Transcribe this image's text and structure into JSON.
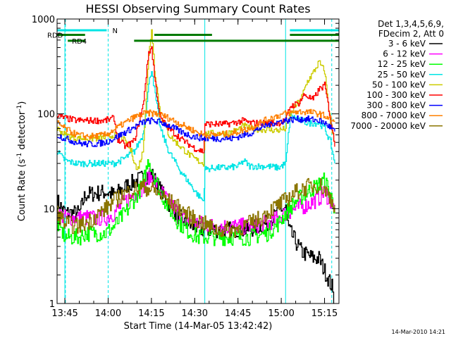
{
  "chart_data": {
    "type": "line",
    "title": "HESSI Observing Summary Count Rates",
    "xlabel": "Start Time (14-Mar-05 13:42:42)",
    "ylabel": "Count Rate (s",
    "ylabel_sup1": "-1",
    "ylabel_mid": " detector",
    "ylabel_sup2": "-1",
    "ylabel_end": ")",
    "y_scale": "log",
    "ylim": [
      1,
      1000
    ],
    "xlim_minutes": [
      -2.7,
      95
    ],
    "x_ticks": [
      {
        "label": "13:45",
        "minutes": 0
      },
      {
        "label": "14:00",
        "minutes": 15
      },
      {
        "label": "14:15",
        "minutes": 30
      },
      {
        "label": "14:30",
        "minutes": 45
      },
      {
        "label": "14:45",
        "minutes": 60
      },
      {
        "label": "15:00",
        "minutes": 75
      },
      {
        "label": "15:15",
        "minutes": 90
      }
    ],
    "y_ticks": [
      {
        "label": "1",
        "value": 1
      },
      {
        "label": "10",
        "value": 10
      },
      {
        "label": "100",
        "value": 100
      },
      {
        "label": "1000",
        "value": 1000
      }
    ],
    "legend_header": [
      "Det 1,3,4,5,6,9,",
      "FDecim 2, Att 0"
    ],
    "legend_placement": "right",
    "flags": [
      {
        "label": "N",
        "color": "#00e5e5",
        "y": 760,
        "segments": [
          [
            -2.7,
            14.5
          ],
          [
            78,
            95
          ]
        ]
      },
      {
        "label": "RDD",
        "color": "#007a00",
        "y": 680,
        "segments": [
          [
            -2.7,
            7
          ],
          [
            31,
            51
          ],
          [
            78,
            95
          ]
        ]
      },
      {
        "label": "RD4",
        "color": "#007a00",
        "y": 590,
        "segments": [
          [
            1,
            7
          ],
          [
            24,
            95
          ]
        ]
      }
    ],
    "vertical_markers": [
      {
        "minutes": 0,
        "color": "#00e5e5",
        "style": "solid"
      },
      {
        "minutes": 0.2,
        "color": "#00e5e5",
        "style": "dashed"
      },
      {
        "minutes": 15,
        "color": "#00e5e5",
        "style": "dashed"
      },
      {
        "minutes": 48.5,
        "color": "#00e5e5",
        "style": "solid"
      },
      {
        "minutes": 76.5,
        "color": "#00e5e5",
        "style": "solid"
      },
      {
        "minutes": 92.5,
        "color": "#00e5e5",
        "style": "dashed"
      }
    ],
    "series": [
      {
        "name": "3 - 6 keV",
        "color": "#000000",
        "points": [
          [
            -2.7,
            12
          ],
          [
            0,
            9
          ],
          [
            5,
            9
          ],
          [
            7,
            14
          ],
          [
            14,
            15
          ],
          [
            17,
            14
          ],
          [
            22,
            18
          ],
          [
            28,
            22
          ],
          [
            30,
            23
          ],
          [
            34,
            14
          ],
          [
            38,
            9
          ],
          [
            42,
            7
          ],
          [
            46,
            6
          ],
          [
            52,
            6
          ],
          [
            58,
            6
          ],
          [
            64,
            6
          ],
          [
            70,
            7
          ],
          [
            72,
            8
          ],
          [
            75,
            10
          ],
          [
            76.5,
            10
          ],
          [
            77.5,
            6
          ],
          [
            82,
            3.5
          ],
          [
            86,
            3
          ],
          [
            88,
            3
          ],
          [
            90,
            2.2
          ],
          [
            92.5,
            1.5
          ],
          [
            93.5,
            0.8
          ]
        ]
      },
      {
        "name": "6 - 12 keV",
        "color": "#ff00ff",
        "points": [
          [
            -2.7,
            9
          ],
          [
            0,
            8
          ],
          [
            7,
            8
          ],
          [
            14,
            8
          ],
          [
            17,
            9
          ],
          [
            22,
            13
          ],
          [
            27,
            17
          ],
          [
            29,
            22
          ],
          [
            31,
            20
          ],
          [
            34,
            14
          ],
          [
            38,
            10
          ],
          [
            42,
            8
          ],
          [
            46,
            7
          ],
          [
            52,
            6.5
          ],
          [
            58,
            6.5
          ],
          [
            64,
            6.5
          ],
          [
            70,
            7
          ],
          [
            74,
            8
          ],
          [
            76.5,
            9
          ],
          [
            80,
            10
          ],
          [
            84,
            11
          ],
          [
            88,
            13
          ],
          [
            90,
            15
          ],
          [
            92,
            12
          ],
          [
            93.5,
            9
          ]
        ]
      },
      {
        "name": "12 - 25 keV",
        "color": "#00ff00",
        "points": [
          [
            -2.7,
            7
          ],
          [
            0,
            5
          ],
          [
            5,
            5
          ],
          [
            7,
            5.5
          ],
          [
            14,
            5.5
          ],
          [
            17,
            6.5
          ],
          [
            22,
            10
          ],
          [
            27,
            18
          ],
          [
            29,
            33
          ],
          [
            31,
            22
          ],
          [
            34,
            13
          ],
          [
            38,
            8
          ],
          [
            42,
            6
          ],
          [
            46,
            5
          ],
          [
            52,
            5
          ],
          [
            58,
            5
          ],
          [
            64,
            5
          ],
          [
            70,
            5.5
          ],
          [
            74,
            7
          ],
          [
            76.5,
            9
          ],
          [
            80,
            12
          ],
          [
            84,
            15
          ],
          [
            88,
            18
          ],
          [
            90,
            20
          ],
          [
            92,
            14
          ],
          [
            93.5,
            10
          ]
        ]
      },
      {
        "name": "25 - 50 keV",
        "color": "#00e5e5",
        "points": [
          [
            -2.7,
            40
          ],
          [
            0,
            32
          ],
          [
            4,
            30
          ],
          [
            7,
            30
          ],
          [
            14,
            30
          ],
          [
            17,
            30
          ],
          [
            20,
            33
          ],
          [
            24,
            40
          ],
          [
            27,
            60
          ],
          [
            29,
            200
          ],
          [
            30,
            300
          ],
          [
            31,
            180
          ],
          [
            33,
            70
          ],
          [
            36,
            40
          ],
          [
            40,
            25
          ],
          [
            44,
            17
          ],
          [
            46,
            14
          ],
          [
            48,
            12
          ],
          [
            48.5,
            26
          ],
          [
            52,
            27
          ],
          [
            56,
            27
          ],
          [
            60,
            28
          ],
          [
            62,
            32
          ],
          [
            64,
            28
          ],
          [
            70,
            28
          ],
          [
            74,
            27
          ],
          [
            76.5,
            30
          ],
          [
            78,
            95
          ],
          [
            80,
            90
          ],
          [
            84,
            80
          ],
          [
            88,
            80
          ],
          [
            90,
            70
          ],
          [
            92,
            50
          ],
          [
            93.5,
            30
          ]
        ]
      },
      {
        "name": "50 - 100 keV",
        "color": "#cccc00",
        "points": [
          [
            -2.7,
            70
          ],
          [
            0,
            60
          ],
          [
            4,
            55
          ],
          [
            7,
            55
          ],
          [
            10,
            55
          ],
          [
            14,
            56
          ],
          [
            17,
            60
          ],
          [
            20,
            55
          ],
          [
            23,
            40
          ],
          [
            25,
            25
          ],
          [
            27,
            40
          ],
          [
            29,
            400
          ],
          [
            30,
            800
          ],
          [
            31,
            300
          ],
          [
            33,
            100
          ],
          [
            36,
            60
          ],
          [
            40,
            45
          ],
          [
            44,
            35
          ],
          [
            46,
            32
          ],
          [
            48,
            30
          ],
          [
            48.5,
            62
          ],
          [
            52,
            62
          ],
          [
            56,
            62
          ],
          [
            60,
            68
          ],
          [
            62,
            75
          ],
          [
            64,
            70
          ],
          [
            70,
            68
          ],
          [
            74,
            67
          ],
          [
            76.5,
            70
          ],
          [
            79,
            110
          ],
          [
            82,
            150
          ],
          [
            84,
            220
          ],
          [
            86,
            270
          ],
          [
            88,
            350
          ],
          [
            90,
            280
          ],
          [
            92,
            80
          ],
          [
            93.5,
            50
          ]
        ]
      },
      {
        "name": "100 - 300 keV",
        "color": "#ff0000",
        "points": [
          [
            -2.7,
            95
          ],
          [
            0,
            90
          ],
          [
            4,
            85
          ],
          [
            7,
            85
          ],
          [
            10,
            85
          ],
          [
            14,
            85
          ],
          [
            17,
            90
          ],
          [
            18,
            55
          ],
          [
            21,
            45
          ],
          [
            24,
            52
          ],
          [
            27,
            120
          ],
          [
            29,
            450
          ],
          [
            30,
            500
          ],
          [
            31,
            250
          ],
          [
            33,
            90
          ],
          [
            36,
            70
          ],
          [
            40,
            55
          ],
          [
            44,
            45
          ],
          [
            46,
            42
          ],
          [
            48,
            40
          ],
          [
            48.5,
            78
          ],
          [
            52,
            78
          ],
          [
            56,
            78
          ],
          [
            60,
            82
          ],
          [
            62,
            85
          ],
          [
            64,
            80
          ],
          [
            70,
            80
          ],
          [
            74,
            80
          ],
          [
            76.5,
            85
          ],
          [
            78,
            120
          ],
          [
            81,
            130
          ],
          [
            83,
            160
          ],
          [
            86,
            140
          ],
          [
            88,
            180
          ],
          [
            90,
            200
          ],
          [
            92,
            90
          ],
          [
            93.5,
            45
          ]
        ]
      },
      {
        "name": "300 - 800 keV",
        "color": "#0000ff",
        "points": [
          [
            -2.7,
            60
          ],
          [
            0,
            55
          ],
          [
            4,
            50
          ],
          [
            7,
            48
          ],
          [
            10,
            48
          ],
          [
            14,
            50
          ],
          [
            17,
            55
          ],
          [
            20,
            62
          ],
          [
            24,
            72
          ],
          [
            27,
            82
          ],
          [
            30,
            85
          ],
          [
            33,
            82
          ],
          [
            36,
            75
          ],
          [
            40,
            65
          ],
          [
            44,
            58
          ],
          [
            48,
            55
          ],
          [
            52,
            55
          ],
          [
            58,
            55
          ],
          [
            62,
            60
          ],
          [
            64,
            62
          ],
          [
            68,
            72
          ],
          [
            72,
            80
          ],
          [
            76,
            85
          ],
          [
            80,
            88
          ],
          [
            84,
            88
          ],
          [
            88,
            85
          ],
          [
            90,
            80
          ],
          [
            92,
            72
          ],
          [
            93.5,
            65
          ]
        ]
      },
      {
        "name": "800 - 7000 keV",
        "color": "#ff8000",
        "points": [
          [
            -2.7,
            80
          ],
          [
            0,
            70
          ],
          [
            4,
            60
          ],
          [
            7,
            58
          ],
          [
            10,
            58
          ],
          [
            14,
            60
          ],
          [
            17,
            68
          ],
          [
            20,
            78
          ],
          [
            24,
            92
          ],
          [
            27,
            100
          ],
          [
            30,
            102
          ],
          [
            33,
            98
          ],
          [
            36,
            90
          ],
          [
            40,
            78
          ],
          [
            44,
            68
          ],
          [
            48,
            60
          ],
          [
            52,
            60
          ],
          [
            58,
            62
          ],
          [
            62,
            68
          ],
          [
            64,
            70
          ],
          [
            68,
            82
          ],
          [
            72,
            92
          ],
          [
            76,
            100
          ],
          [
            80,
            105
          ],
          [
            84,
            105
          ],
          [
            88,
            100
          ],
          [
            90,
            95
          ],
          [
            92,
            88
          ],
          [
            93.5,
            82
          ]
        ]
      },
      {
        "name": "7000 - 20000 keV",
        "color": "#8b7500",
        "points": [
          [
            -2.7,
            9
          ],
          [
            0,
            7
          ],
          [
            4,
            6.5
          ],
          [
            7,
            7
          ],
          [
            10,
            8
          ],
          [
            14,
            10
          ],
          [
            17,
            12
          ],
          [
            20,
            14
          ],
          [
            24,
            16
          ],
          [
            27,
            17
          ],
          [
            30,
            16
          ],
          [
            33,
            14
          ],
          [
            36,
            12
          ],
          [
            40,
            10
          ],
          [
            44,
            8
          ],
          [
            48,
            7
          ],
          [
            52,
            6
          ],
          [
            58,
            6
          ],
          [
            62,
            6.5
          ],
          [
            64,
            7
          ],
          [
            68,
            8
          ],
          [
            72,
            10
          ],
          [
            76,
            12
          ],
          [
            80,
            15
          ],
          [
            84,
            17
          ],
          [
            88,
            18
          ],
          [
            90,
            16
          ],
          [
            92,
            13
          ],
          [
            93.5,
            11
          ]
        ]
      }
    ]
  },
  "timestamp": "14-Mar-2010 14:21"
}
